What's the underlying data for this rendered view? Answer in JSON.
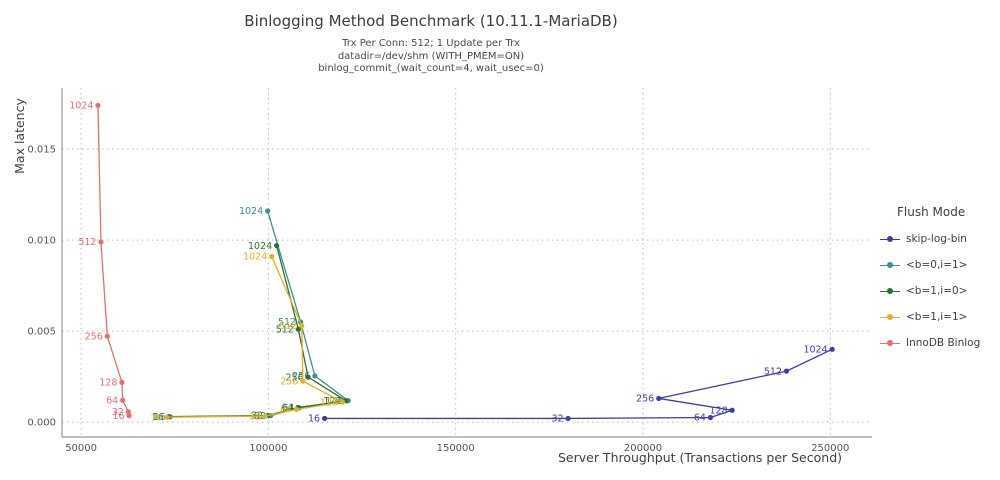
{
  "header": {
    "title": "Binlogging Method Benchmark (10.11.1-MariaDB)",
    "subtitle_lines": [
      "Trx Per Conn: 512; 1 Update per Trx",
      "datadir=/dev/shm (WITH_PMEM=ON)",
      "binlog_commit_(wait_count=4, wait_usec=0)"
    ]
  },
  "chart_data": {
    "type": "line",
    "title": "Binlogging Method Benchmark (10.11.1-MariaDB)",
    "xlabel": "Server Throughput (Transactions per Second)",
    "ylabel": "Max latency",
    "xlim": [
      44900,
      260600
    ],
    "ylim": [
      -0.00082,
      0.01836
    ],
    "x_ticks": [
      50000,
      100000,
      150000,
      200000,
      250000
    ],
    "x_tick_labels": [
      "50000",
      "100000",
      "150000",
      "200000",
      "250000"
    ],
    "y_ticks": [
      0,
      0.005,
      0.01,
      0.015
    ],
    "y_tick_labels": [
      "0.000",
      "0.005",
      "0.010",
      "0.015"
    ],
    "grid": "dotted",
    "grid_color": "#bbbbbb",
    "spine_color": "#999999",
    "tick_label_color": "#555555",
    "axis_label_color": "#3f3f3f",
    "legend_title": "Flush Mode",
    "point_labels_are": "number of client connections",
    "series": [
      {
        "name": "skip-log-bin",
        "color": "#3c3cab",
        "points": [
          {
            "label": "16",
            "x": 115000,
            "y": 0.0002
          },
          {
            "label": "32",
            "x": 180000,
            "y": 0.0002
          },
          {
            "label": "64",
            "x": 218000,
            "y": 0.00025
          },
          {
            "label": "128",
            "x": 223800,
            "y": 0.00065
          },
          {
            "label": "256",
            "x": 204200,
            "y": 0.0013
          },
          {
            "label": "512",
            "x": 238300,
            "y": 0.0028
          },
          {
            "label": "1024",
            "x": 250500,
            "y": 0.004
          }
        ]
      },
      {
        "name": "<b=0,i=1>",
        "color": "#3d8e8e",
        "points": [
          {
            "label": "16",
            "x": 73800,
            "y": 0.00029
          },
          {
            "label": "32",
            "x": 100600,
            "y": 0.00035
          },
          {
            "label": "64",
            "x": 108200,
            "y": 0.00078
          },
          {
            "label": "128",
            "x": 121300,
            "y": 0.00118
          },
          {
            "label": "256",
            "x": 112400,
            "y": 0.00254
          },
          {
            "label": "512",
            "x": 108600,
            "y": 0.0055
          },
          {
            "label": "1024",
            "x": 99800,
            "y": 0.0116
          }
        ]
      },
      {
        "name": "<b=1,i=0>",
        "color": "#2e6f2f",
        "points": [
          {
            "label": "16",
            "x": 73300,
            "y": 0.0003
          },
          {
            "label": "32",
            "x": 99800,
            "y": 0.00036
          },
          {
            "label": "64",
            "x": 107900,
            "y": 0.0008
          },
          {
            "label": "128",
            "x": 120700,
            "y": 0.00117
          },
          {
            "label": "256",
            "x": 110600,
            "y": 0.00247
          },
          {
            "label": "512",
            "x": 108000,
            "y": 0.0051
          },
          {
            "label": "1024",
            "x": 102200,
            "y": 0.0097
          }
        ]
      },
      {
        "name": "<b=1,i=1>",
        "color": "#e0b224",
        "points": [
          {
            "label": "16",
            "x": 72900,
            "y": 0.00027
          },
          {
            "label": "32",
            "x": 99200,
            "y": 0.00033
          },
          {
            "label": "64",
            "x": 107500,
            "y": 0.0007
          },
          {
            "label": "128",
            "x": 119800,
            "y": 0.0011
          },
          {
            "label": "256",
            "x": 109200,
            "y": 0.00225
          },
          {
            "label": "512",
            "x": 108900,
            "y": 0.0053
          },
          {
            "label": "1024",
            "x": 100900,
            "y": 0.0091
          }
        ]
      },
      {
        "name": "InnoDB Binlog",
        "color": "#e66f6c",
        "points": [
          {
            "label": "16",
            "x": 62800,
            "y": 0.00035
          },
          {
            "label": "32",
            "x": 62600,
            "y": 0.00057
          },
          {
            "label": "64",
            "x": 61100,
            "y": 0.0012
          },
          {
            "label": "128",
            "x": 60900,
            "y": 0.00218
          },
          {
            "label": "256",
            "x": 57000,
            "y": 0.00472
          },
          {
            "label": "512",
            "x": 55300,
            "y": 0.0099
          },
          {
            "label": "1024",
            "x": 54500,
            "y": 0.0174
          }
        ]
      }
    ]
  }
}
